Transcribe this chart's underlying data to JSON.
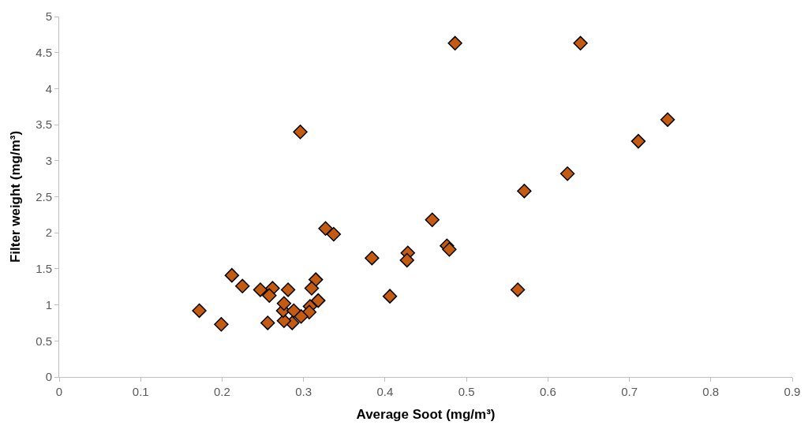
{
  "chart_data": {
    "type": "scatter",
    "xlabel": "Average Soot (mg/m³)",
    "ylabel": "Filter weight (mg/m³)",
    "x": [
      0.172,
      0.199,
      0.212,
      0.225,
      0.247,
      0.262,
      0.258,
      0.281,
      0.315,
      0.31,
      0.318,
      0.308,
      0.307,
      0.297,
      0.286,
      0.276,
      0.275,
      0.276,
      0.288,
      0.256,
      0.296,
      0.327,
      0.337,
      0.384,
      0.406,
      0.428,
      0.427,
      0.458,
      0.476,
      0.479,
      0.486,
      0.64,
      0.747,
      0.711,
      0.624,
      0.571,
      0.563
    ],
    "values": [
      0.92,
      0.73,
      1.41,
      1.26,
      1.21,
      1.23,
      1.13,
      1.21,
      1.35,
      1.23,
      1.06,
      0.98,
      0.9,
      0.84,
      0.75,
      0.78,
      0.92,
      1.02,
      0.92,
      0.75,
      3.4,
      2.06,
      1.98,
      1.65,
      1.12,
      1.72,
      1.62,
      2.18,
      1.82,
      1.77,
      4.63,
      4.63,
      3.57,
      3.27,
      2.82,
      2.58,
      1.21
    ],
    "color": "#c55a11",
    "marker": "diamond",
    "grid": false,
    "xlim": [
      0,
      0.9
    ],
    "xticks": [
      0,
      0.1,
      0.2,
      0.3,
      0.4,
      0.5,
      0.6,
      0.7,
      0.8,
      0.9
    ],
    "ylim": [
      0,
      5
    ],
    "yticks": [
      0,
      0.5,
      1,
      1.5,
      2,
      2.5,
      3,
      3.5,
      4,
      4.5,
      5
    ]
  }
}
